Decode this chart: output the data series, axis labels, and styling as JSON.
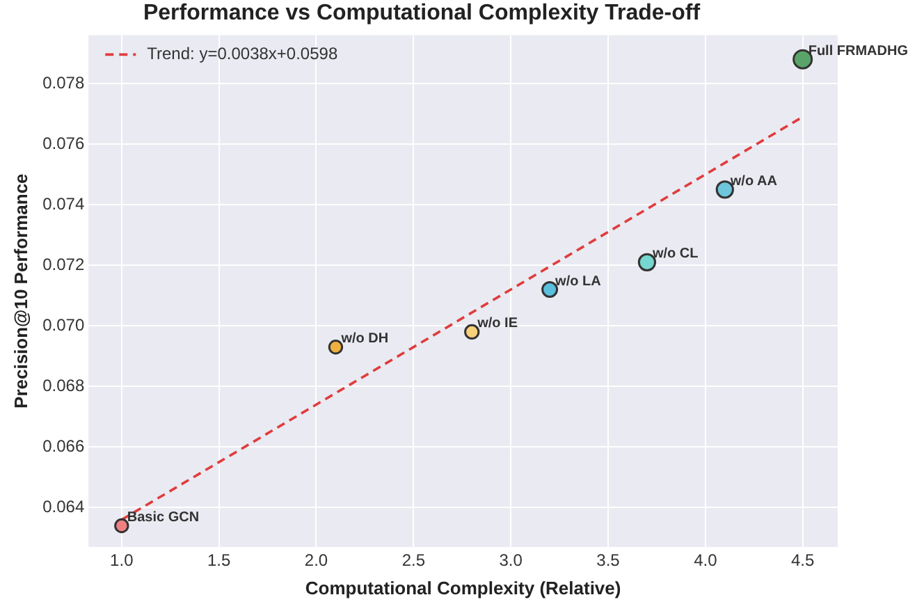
{
  "chart_data": {
    "type": "bubble",
    "title": "Performance vs Computational Complexity Trade-off",
    "xlabel": "Computational Complexity (Relative)",
    "ylabel": "Precision@10 Performance",
    "series": [
      {
        "type": "bubble",
        "x": [
          1.0,
          2.1,
          2.8,
          3.2,
          3.7,
          4.1,
          4.5
        ],
        "values": [
          0.0634,
          0.0693,
          0.0698,
          0.0712,
          0.0721,
          0.0745,
          0.0788
        ],
        "sizes": [
          0.5,
          0.5,
          0.55,
          0.65,
          0.8,
          0.8,
          1
        ],
        "colors": [
          "#f08080",
          "#f0b040",
          "#f7d07a",
          "#5bc0de",
          "#76d7d0",
          "#6ec6dc",
          "#5aa469"
        ],
        "marker": "circle"
      },
      {
        "type": "line",
        "name": "Trend: y=0.0038x+0.0598",
        "color": "#e03c3c",
        "x": [
          1.0,
          4.5
        ],
        "values": [
          0.0636,
          0.0769
        ],
        "line_style": "dashed",
        "marker": "none"
      }
    ],
    "annotations": [
      {
        "text": "Basic GCN",
        "x": 1.0,
        "y": 0.0634
      },
      {
        "text": "w/o DH",
        "x": 2.1,
        "y": 0.0693
      },
      {
        "text": "w/o IE",
        "x": 2.8,
        "y": 0.0698
      },
      {
        "text": "w/o LA",
        "x": 3.2,
        "y": 0.0712
      },
      {
        "text": "w/o CL",
        "x": 3.7,
        "y": 0.0721
      },
      {
        "text": "w/o AA",
        "x": 4.1,
        "y": 0.0745
      },
      {
        "text": "Full FRMADHG",
        "x": 4.5,
        "y": 0.0788
      }
    ],
    "xlim": [
      0.83,
      4.68
    ],
    "xticks": [
      {
        "value": 1,
        "label": "1.0"
      },
      {
        "value": 1.5,
        "label": "1.5"
      },
      {
        "value": 2,
        "label": "2.0"
      },
      {
        "value": 2.5,
        "label": "2.5"
      },
      {
        "value": 3,
        "label": "3.0"
      },
      {
        "value": 3.5,
        "label": "3.5"
      },
      {
        "value": 4,
        "label": "4.0"
      },
      {
        "value": 4.5,
        "label": "4.5"
      }
    ],
    "ylim": [
      0.0627,
      0.0796
    ],
    "yticks": [
      {
        "value": 0.064,
        "label": "0.064"
      },
      {
        "value": 0.066,
        "label": "0.066"
      },
      {
        "value": 0.068,
        "label": "0.068"
      },
      {
        "value": 0.07,
        "label": "0.070"
      },
      {
        "value": 0.072,
        "label": "0.072"
      },
      {
        "value": 0.074,
        "label": "0.074"
      },
      {
        "value": 0.076,
        "label": "0.076"
      },
      {
        "value": 0.078,
        "label": "0.078"
      }
    ],
    "grid": true,
    "legend": "top left"
  }
}
